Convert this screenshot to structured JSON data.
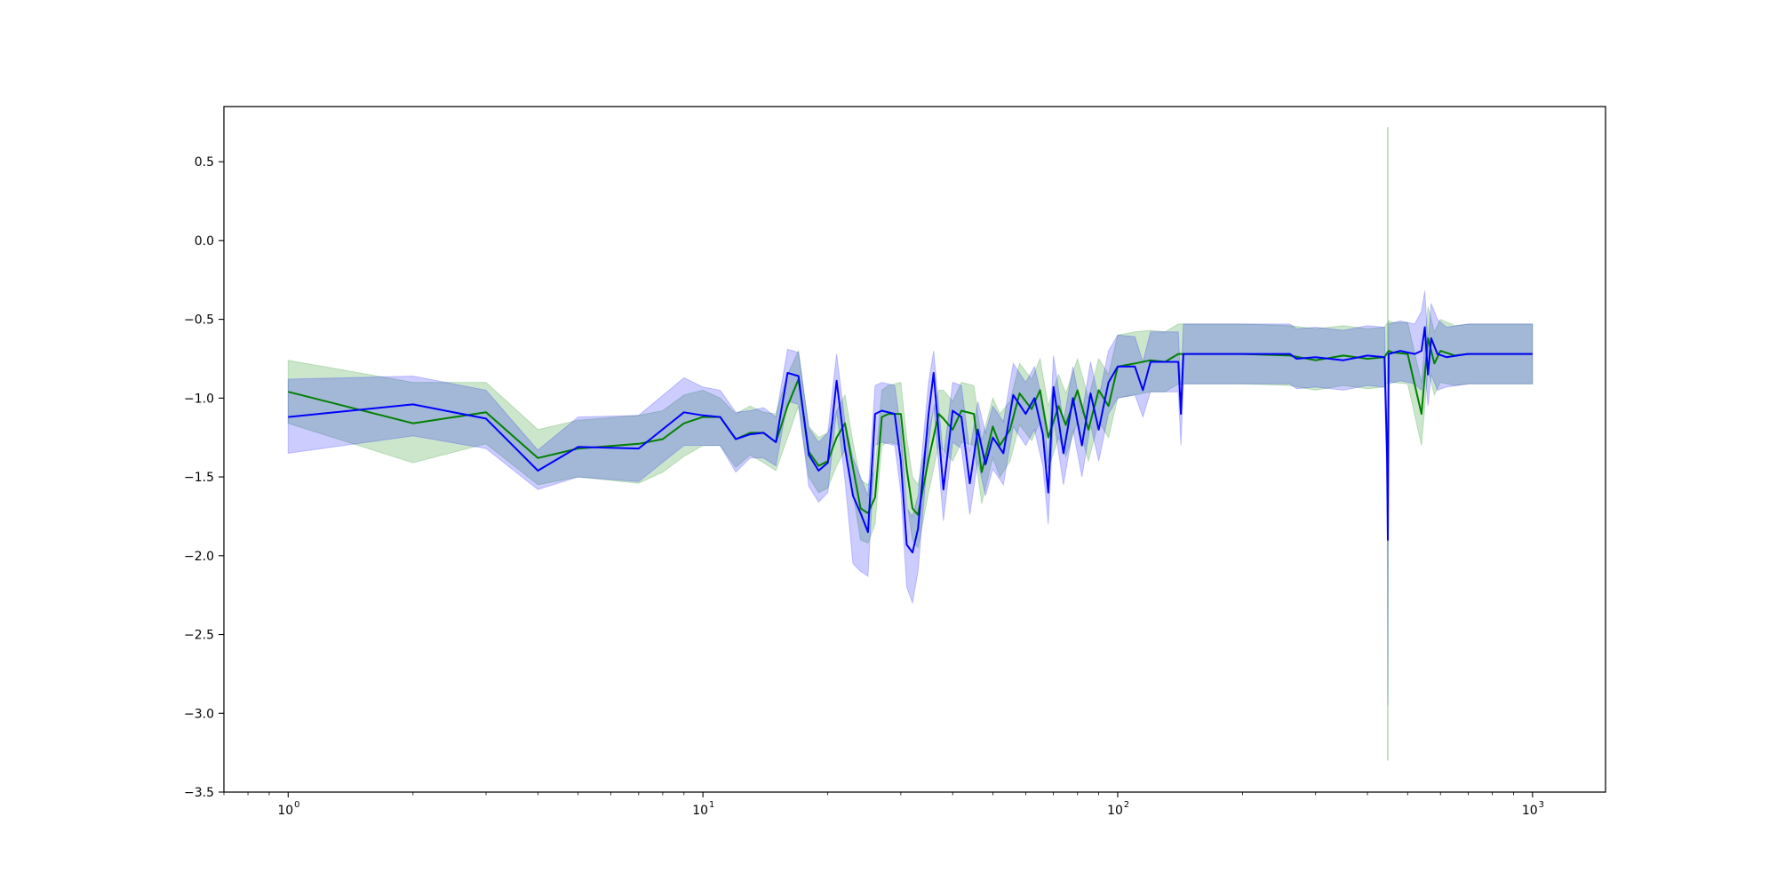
{
  "chart_data": {
    "type": "line",
    "title": "",
    "xlabel": "",
    "ylabel": "",
    "xscale": "log",
    "xlim": [
      0.7,
      1500
    ],
    "ylim": [
      -3.5,
      0.85
    ],
    "grid": false,
    "legend": "none",
    "x_ticks": [
      {
        "value": 1,
        "base": "10",
        "exp": "0"
      },
      {
        "value": 10,
        "base": "10",
        "exp": "1"
      },
      {
        "value": 100,
        "base": "10",
        "exp": "2"
      },
      {
        "value": 1000,
        "base": "10",
        "exp": "3"
      }
    ],
    "y_ticks": [
      {
        "value": 0.5,
        "label": "0.5"
      },
      {
        "value": 0.0,
        "label": "0.0"
      },
      {
        "value": -0.5,
        "label": "−0.5"
      },
      {
        "value": -1.0,
        "label": "−1.0"
      },
      {
        "value": -1.5,
        "label": "−1.5"
      },
      {
        "value": -2.0,
        "label": "−2.0"
      },
      {
        "value": -2.5,
        "label": "−2.5"
      },
      {
        "value": -3.0,
        "label": "−3.0"
      },
      {
        "value": -3.5,
        "label": "−3.5"
      }
    ],
    "series": [
      {
        "color": "#008000",
        "band_color": "#008000",
        "band_opacity": 0.2,
        "points": [
          [
            1,
            -0.96,
            -1.16,
            -0.76
          ],
          [
            2,
            -1.16,
            -1.41,
            -0.9
          ],
          [
            3,
            -1.09,
            -1.29,
            -0.9
          ],
          [
            4,
            -1.38,
            -1.55,
            -1.2
          ],
          [
            5,
            -1.32,
            -1.5,
            -1.14
          ],
          [
            7,
            -1.29,
            -1.54,
            -1.11
          ],
          [
            8,
            -1.26,
            -1.47,
            -1.08
          ],
          [
            9,
            -1.16,
            -1.37,
            -0.98
          ],
          [
            10,
            -1.12,
            -1.3,
            -0.95
          ],
          [
            11,
            -1.12,
            -1.3,
            -1.0
          ],
          [
            12,
            -1.26,
            -1.44,
            -1.1
          ],
          [
            13,
            -1.22,
            -1.36,
            -1.05
          ],
          [
            14,
            -1.22,
            -1.41,
            -1.09
          ],
          [
            15,
            -1.28,
            -1.46,
            -1.1
          ],
          [
            16,
            -1.05,
            -1.25,
            -0.85
          ],
          [
            17,
            -0.88,
            -1.05,
            -0.7
          ],
          [
            18,
            -1.34,
            -1.5,
            -1.18
          ],
          [
            19,
            -1.43,
            -1.6,
            -1.25
          ],
          [
            20,
            -1.4,
            -1.57,
            -1.22
          ],
          [
            21,
            -1.25,
            -1.43,
            -1.08
          ],
          [
            22,
            -1.16,
            -1.33,
            -0.98
          ],
          [
            23,
            -1.44,
            -1.6,
            -1.28
          ],
          [
            24,
            -1.7,
            -1.9,
            -1.52
          ],
          [
            25,
            -1.73,
            -1.92,
            -1.55
          ],
          [
            26,
            -1.63,
            -1.8,
            -1.45
          ],
          [
            27,
            -1.12,
            -1.3,
            -0.95
          ],
          [
            28,
            -1.1,
            -1.28,
            -0.92
          ],
          [
            30,
            -1.1,
            -1.3,
            -0.9
          ],
          [
            31,
            -1.45,
            -1.65,
            -1.25
          ],
          [
            32,
            -1.7,
            -1.9,
            -1.5
          ],
          [
            33,
            -1.74,
            -1.95,
            -1.55
          ],
          [
            35,
            -1.39,
            -1.6,
            -1.2
          ],
          [
            37,
            -1.1,
            -1.3,
            -0.95
          ],
          [
            38,
            -1.13,
            -1.33,
            -0.95
          ],
          [
            40,
            -1.2,
            -1.4,
            -1.02
          ],
          [
            42,
            -1.08,
            -1.28,
            -0.9
          ],
          [
            45,
            -1.1,
            -1.3,
            -0.92
          ],
          [
            47,
            -1.47,
            -1.67,
            -1.27
          ],
          [
            50,
            -1.18,
            -1.38,
            -1.0
          ],
          [
            52,
            -1.3,
            -1.5,
            -1.1
          ],
          [
            55,
            -1.2,
            -1.4,
            -1.02
          ],
          [
            58,
            -0.97,
            -1.17,
            -0.78
          ],
          [
            62,
            -1.07,
            -1.27,
            -0.88
          ],
          [
            65,
            -0.95,
            -1.15,
            -0.75
          ],
          [
            68,
            -1.25,
            -1.45,
            -1.05
          ],
          [
            72,
            -1.05,
            -1.25,
            -0.85
          ],
          [
            75,
            -1.17,
            -1.37,
            -0.97
          ],
          [
            80,
            -0.95,
            -1.15,
            -0.75
          ],
          [
            85,
            -1.2,
            -1.4,
            -1.0
          ],
          [
            90,
            -0.95,
            -1.15,
            -0.75
          ],
          [
            95,
            -1.05,
            -1.25,
            -0.85
          ],
          [
            100,
            -0.8,
            -1.0,
            -0.6
          ],
          [
            110,
            -0.78,
            -0.98,
            -0.58
          ],
          [
            120,
            -0.76,
            -0.96,
            -0.57
          ],
          [
            130,
            -0.77,
            -0.96,
            -0.58
          ],
          [
            140,
            -0.72,
            -0.91,
            -0.53
          ],
          [
            200,
            -0.72,
            -0.91,
            -0.53
          ],
          [
            260,
            -0.73,
            -0.92,
            -0.54
          ],
          [
            300,
            -0.76,
            -0.95,
            -0.56
          ],
          [
            350,
            -0.73,
            -0.92,
            -0.54
          ],
          [
            400,
            -0.75,
            -0.94,
            -0.56
          ],
          [
            440,
            -0.74,
            -0.93,
            -0.55
          ],
          [
            450,
            -0.7,
            -0.89,
            -0.51
          ],
          [
            460,
            -0.71,
            -0.9,
            -0.52
          ],
          [
            500,
            -0.72,
            -0.91,
            -0.52
          ],
          [
            540,
            -1.1,
            -1.3,
            -0.9
          ],
          [
            560,
            -0.62,
            -0.82,
            -0.42
          ],
          [
            580,
            -0.78,
            -0.98,
            -0.58
          ],
          [
            600,
            -0.7,
            -0.9,
            -0.5
          ],
          [
            650,
            -0.73,
            -0.92,
            -0.54
          ],
          [
            700,
            -0.72,
            -0.91,
            -0.53
          ],
          [
            800,
            -0.72,
            -0.91,
            -0.53
          ],
          [
            1000,
            -0.72,
            -0.91,
            -0.53
          ]
        ]
      },
      {
        "color": "#0000ff",
        "band_color": "#0000ff",
        "band_opacity": 0.2,
        "points": [
          [
            1,
            -1.12,
            -1.35,
            -0.88
          ],
          [
            2,
            -1.04,
            -1.24,
            -0.86
          ],
          [
            3,
            -1.13,
            -1.32,
            -0.95
          ],
          [
            4,
            -1.46,
            -1.58,
            -1.33
          ],
          [
            5,
            -1.31,
            -1.5,
            -1.12
          ],
          [
            7,
            -1.32,
            -1.53,
            -1.11
          ],
          [
            9,
            -1.09,
            -1.3,
            -0.87
          ],
          [
            10,
            -1.11,
            -1.3,
            -0.93
          ],
          [
            11,
            -1.12,
            -1.3,
            -0.95
          ],
          [
            12,
            -1.26,
            -1.47,
            -1.09
          ],
          [
            13,
            -1.23,
            -1.38,
            -1.08
          ],
          [
            14,
            -1.22,
            -1.38,
            -1.06
          ],
          [
            15,
            -1.28,
            -1.43,
            -1.12
          ],
          [
            16,
            -0.84,
            -1.02,
            -0.69
          ],
          [
            17,
            -0.86,
            -1.04,
            -0.71
          ],
          [
            18,
            -1.36,
            -1.56,
            -1.19
          ],
          [
            19,
            -1.46,
            -1.66,
            -1.28
          ],
          [
            20,
            -1.41,
            -1.6,
            -1.22
          ],
          [
            21,
            -0.89,
            -1.08,
            -0.72
          ],
          [
            22,
            -1.32,
            -1.52,
            -1.15
          ],
          [
            23,
            -1.62,
            -2.05,
            -1.38
          ],
          [
            24,
            -1.73,
            -2.1,
            -1.5
          ],
          [
            25,
            -1.85,
            -2.13,
            -1.62
          ],
          [
            26,
            -1.1,
            -1.3,
            -0.92
          ],
          [
            27,
            -1.08,
            -1.28,
            -0.9
          ],
          [
            29,
            -1.1,
            -1.3,
            -0.92
          ],
          [
            30,
            -1.4,
            -1.6,
            -1.2
          ],
          [
            31,
            -1.93,
            -2.2,
            -1.7
          ],
          [
            32,
            -1.98,
            -2.3,
            -1.75
          ],
          [
            33,
            -1.83,
            -2.1,
            -1.62
          ],
          [
            35,
            -1.1,
            -1.3,
            -0.9
          ],
          [
            36,
            -0.84,
            -1.04,
            -0.7
          ],
          [
            38,
            -1.58,
            -1.78,
            -1.38
          ],
          [
            40,
            -1.08,
            -1.28,
            -0.9
          ],
          [
            42,
            -1.12,
            -1.32,
            -0.92
          ],
          [
            44,
            -1.54,
            -1.74,
            -1.34
          ],
          [
            46,
            -1.2,
            -1.4,
            -1.02
          ],
          [
            48,
            -1.42,
            -1.62,
            -1.22
          ],
          [
            50,
            -1.25,
            -1.45,
            -1.05
          ],
          [
            53,
            -1.35,
            -1.55,
            -1.15
          ],
          [
            56,
            -0.98,
            -1.18,
            -0.78
          ],
          [
            60,
            -1.1,
            -1.3,
            -0.9
          ],
          [
            63,
            -1.0,
            -1.2,
            -0.8
          ],
          [
            66,
            -1.23,
            -1.43,
            -1.03
          ],
          [
            68,
            -1.6,
            -1.8,
            -1.4
          ],
          [
            70,
            -0.93,
            -1.13,
            -0.73
          ],
          [
            74,
            -1.35,
            -1.55,
            -1.15
          ],
          [
            78,
            -1.0,
            -1.2,
            -0.8
          ],
          [
            82,
            -1.3,
            -1.5,
            -1.1
          ],
          [
            86,
            -0.97,
            -1.17,
            -0.77
          ],
          [
            90,
            -1.2,
            -1.4,
            -1.0
          ],
          [
            95,
            -0.9,
            -1.1,
            -0.7
          ],
          [
            100,
            -0.8,
            -1.0,
            -0.6
          ],
          [
            110,
            -0.8,
            -0.98,
            -0.61
          ],
          [
            115,
            -0.95,
            -1.12,
            -0.77
          ],
          [
            120,
            -0.77,
            -0.96,
            -0.58
          ],
          [
            140,
            -0.77,
            -0.96,
            -0.58
          ],
          [
            142,
            -1.1,
            -1.3,
            -0.92
          ],
          [
            144,
            -0.72,
            -0.91,
            -0.53
          ],
          [
            200,
            -0.72,
            -0.91,
            -0.53
          ],
          [
            260,
            -0.72,
            -0.91,
            -0.53
          ],
          [
            270,
            -0.75,
            -0.94,
            -0.56
          ],
          [
            300,
            -0.74,
            -0.93,
            -0.55
          ],
          [
            350,
            -0.76,
            -0.95,
            -0.57
          ],
          [
            400,
            -0.73,
            -0.92,
            -0.54
          ],
          [
            440,
            -0.74,
            -0.93,
            -0.55
          ],
          [
            446,
            -1.36,
            -1.56,
            -1.16
          ],
          [
            448,
            -1.9,
            -2.95,
            -1.7
          ],
          [
            450,
            -0.72,
            -0.91,
            -0.53
          ],
          [
            480,
            -0.7,
            -0.89,
            -0.51
          ],
          [
            520,
            -0.72,
            -0.91,
            -0.53
          ],
          [
            540,
            -0.7,
            -0.95,
            -0.45
          ],
          [
            550,
            -0.55,
            -0.8,
            -0.32
          ],
          [
            560,
            -0.85,
            -1.05,
            -0.65
          ],
          [
            570,
            -0.62,
            -0.85,
            -0.4
          ],
          [
            590,
            -0.72,
            -0.95,
            -0.5
          ],
          [
            620,
            -0.74,
            -0.93,
            -0.55
          ],
          [
            700,
            -0.72,
            -0.91,
            -0.53
          ],
          [
            800,
            -0.72,
            -0.91,
            -0.53
          ],
          [
            1000,
            -0.72,
            -0.91,
            -0.53
          ]
        ]
      }
    ],
    "spike": {
      "x": 448,
      "y_low": -3.3,
      "y_high": 0.72,
      "color": "#008000"
    }
  }
}
